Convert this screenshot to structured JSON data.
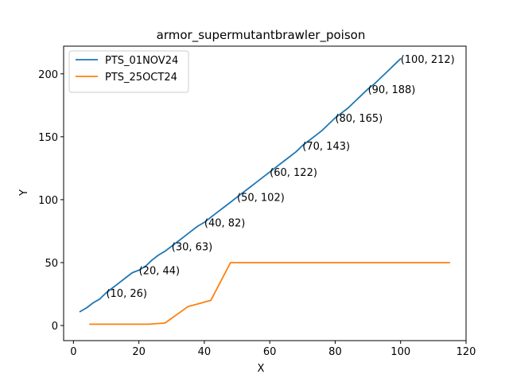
{
  "chart_data": {
    "type": "line",
    "title": "armor_supermutantbrawler_poison",
    "xlabel": "X",
    "ylabel": "Y",
    "xlim": [
      -3,
      120
    ],
    "ylim": [
      -12,
      222
    ],
    "xticks": [
      0,
      20,
      40,
      60,
      80,
      100,
      120
    ],
    "yticks": [
      0,
      50,
      100,
      150,
      200
    ],
    "legend_position": "top-left",
    "grid": false,
    "series": [
      {
        "name": "PTS_01NOV24",
        "color": "#1f77b4",
        "x": [
          2,
          4,
          6,
          8,
          10,
          12,
          14,
          16,
          18,
          20,
          22,
          24,
          26,
          28,
          30,
          32,
          34,
          36,
          38,
          40,
          42,
          44,
          46,
          48,
          50,
          52,
          54,
          56,
          58,
          60,
          62,
          64,
          66,
          68,
          70,
          72,
          74,
          76,
          78,
          80,
          82,
          84,
          86,
          88,
          90,
          92,
          94,
          96,
          98,
          100
        ],
        "y": [
          11,
          14,
          18,
          21,
          26,
          30,
          34,
          38,
          42,
          44,
          47,
          52,
          56,
          59,
          63,
          67,
          71,
          75,
          79,
          82,
          86,
          90,
          94,
          98,
          102,
          106,
          110,
          114,
          118,
          122,
          126,
          130,
          134,
          138,
          143,
          147,
          151,
          155,
          160,
          165,
          169,
          173,
          178,
          183,
          188,
          192,
          197,
          202,
          207,
          212
        ]
      },
      {
        "name": "PTS_25OCT24",
        "color": "#ff7f0e",
        "x": [
          5,
          10,
          15,
          20,
          23,
          28,
          35,
          42,
          48,
          55,
          60,
          70,
          80,
          90,
          100,
          110,
          115
        ],
        "y": [
          1,
          1,
          1,
          1,
          1,
          2,
          15,
          20,
          50,
          50,
          50,
          50,
          50,
          50,
          50,
          50,
          50
        ]
      }
    ],
    "annotations": [
      {
        "x": 10,
        "y": 26,
        "text": "(10, 26)"
      },
      {
        "x": 20,
        "y": 44,
        "text": "(20, 44)"
      },
      {
        "x": 30,
        "y": 63,
        "text": "(30, 63)"
      },
      {
        "x": 40,
        "y": 82,
        "text": "(40, 82)"
      },
      {
        "x": 50,
        "y": 102,
        "text": "(50, 102)"
      },
      {
        "x": 60,
        "y": 122,
        "text": "(60, 122)"
      },
      {
        "x": 70,
        "y": 143,
        "text": "(70, 143)"
      },
      {
        "x": 80,
        "y": 165,
        "text": "(80, 165)"
      },
      {
        "x": 90,
        "y": 188,
        "text": "(90, 188)"
      },
      {
        "x": 100,
        "y": 212,
        "text": "(100, 212)"
      }
    ]
  }
}
